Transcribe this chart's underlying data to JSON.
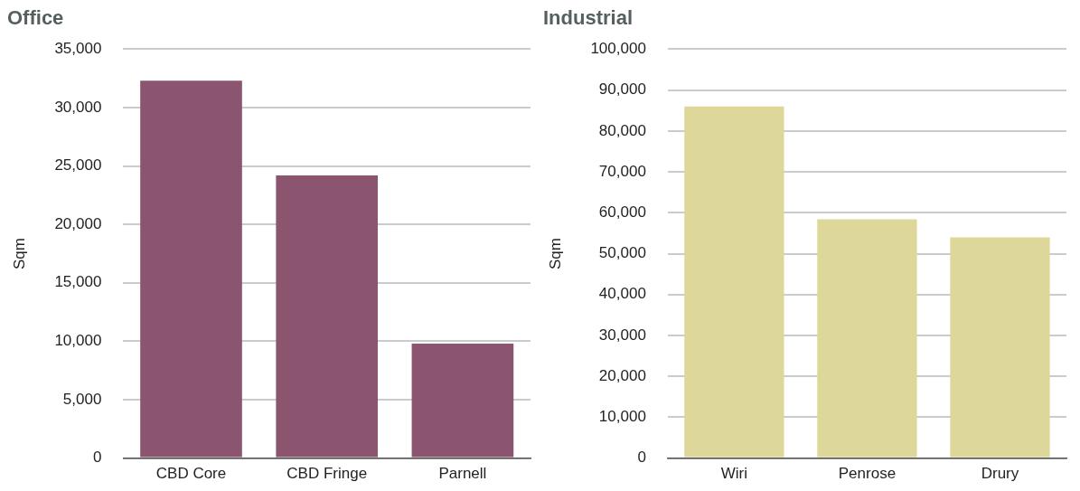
{
  "chart_data": [
    {
      "type": "bar",
      "title": "Office",
      "ylabel": "Sqm",
      "categories": [
        "CBD Core",
        "CBD Fringe",
        "Parnell"
      ],
      "values": [
        32300,
        24200,
        9800
      ],
      "color": "#8b5570",
      "ylim": [
        0,
        35000
      ],
      "yticks": [
        0,
        {
          "value": 5000,
          "label": "5,000"
        },
        {
          "value": 10000,
          "label": "10,000"
        },
        {
          "value": 15000,
          "label": "15,000"
        },
        {
          "value": 20000,
          "label": "20,000"
        },
        {
          "value": 25000,
          "label": "25,000"
        },
        {
          "value": 30000,
          "label": "30,000"
        },
        {
          "value": 35000,
          "label": "35,000"
        }
      ],
      "grid": "y",
      "legend": false
    },
    {
      "type": "bar",
      "title": "Industrial",
      "ylabel": "Sqm",
      "categories": [
        "Wiri",
        "Penrose",
        "Drury"
      ],
      "values": [
        86000,
        58400,
        54000
      ],
      "color": "#ddd799",
      "ylim": [
        0,
        100000
      ],
      "yticks": [
        0,
        {
          "value": 10000,
          "label": "10,000"
        },
        {
          "value": 20000,
          "label": "20,000"
        },
        {
          "value": 30000,
          "label": "30,000"
        },
        {
          "value": 40000,
          "label": "40,000"
        },
        {
          "value": 50000,
          "label": "50,000"
        },
        {
          "value": 60000,
          "label": "60,000"
        },
        {
          "value": 70000,
          "label": "70,000"
        },
        {
          "value": 80000,
          "label": "80,000"
        },
        {
          "value": 90000,
          "label": "90,000"
        },
        {
          "value": 100000,
          "label": "100,000"
        }
      ],
      "grid": "y",
      "legend": false
    }
  ]
}
